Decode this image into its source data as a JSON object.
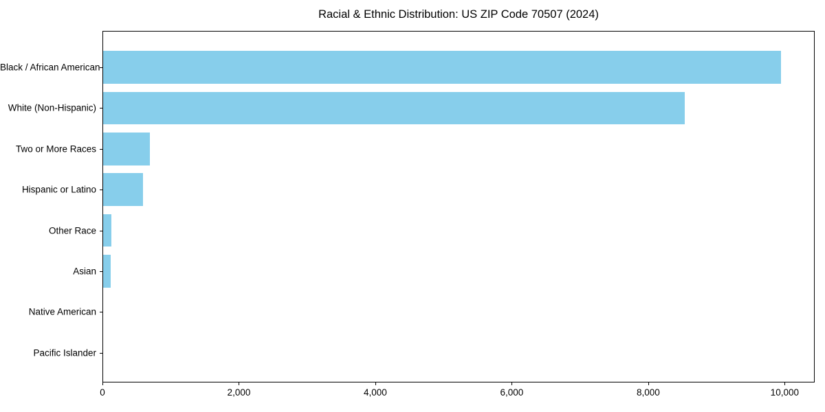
{
  "chart_data": {
    "type": "bar",
    "orientation": "horizontal",
    "title": "Racial & Ethnic Distribution: US ZIP Code 70507 (2024)",
    "categories": [
      "Black / African American",
      "White (Non-Hispanic)",
      "Two or More Races",
      "Hispanic or Latino",
      "Other Race",
      "Asian",
      "Native American",
      "Pacific Islander"
    ],
    "values": [
      9950,
      8540,
      695,
      595,
      130,
      120,
      0,
      0
    ],
    "xlabel": "",
    "ylabel": "",
    "xlim": [
      0,
      10440
    ],
    "x_ticks": [
      0,
      2000,
      4000,
      6000,
      8000,
      10000
    ],
    "x_tick_labels": [
      "0",
      "2,000",
      "4,000",
      "6,000",
      "8,000",
      "10,000"
    ],
    "bar_color": "#87CEEB",
    "background_color": "#ffffff",
    "grid": false,
    "legend": null
  }
}
